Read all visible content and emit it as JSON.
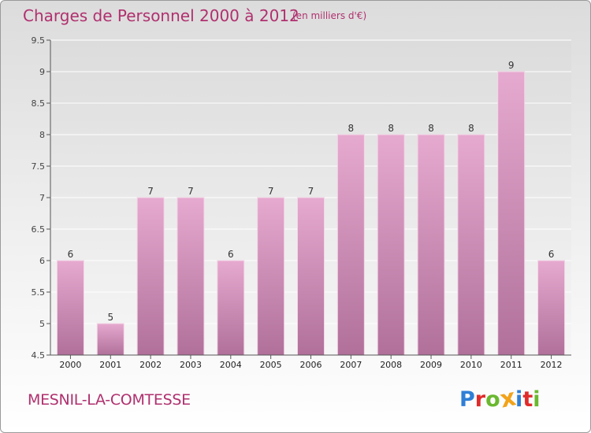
{
  "header": {
    "title": "Charges de Personnel 2000 à 2012",
    "subtitle": "(en milliers d'€)"
  },
  "footer": {
    "commune": "MESNIL-LA-COMTESSE",
    "logo_text": "Proxiti"
  },
  "colors": {
    "bar_light": "#e6a9cf",
    "bar_dark": "#b0709a",
    "accent": "#b0306e",
    "logo": [
      "#2f7fd6",
      "#e02b2b",
      "#6ab82f",
      "#f2a31a",
      "#2f7fd6",
      "#e02b2b",
      "#6ab82f"
    ]
  },
  "chart_data": {
    "type": "bar",
    "title": "Charges de Personnel 2000 à 2012",
    "subtitle": "(en milliers d'€)",
    "categories": [
      "2000",
      "2001",
      "2002",
      "2003",
      "2004",
      "2005",
      "2006",
      "2007",
      "2008",
      "2009",
      "2010",
      "2011",
      "2012"
    ],
    "values": [
      6,
      5,
      7,
      7,
      6,
      7,
      7,
      8,
      8,
      8,
      8,
      9,
      6
    ],
    "data_labels": [
      "6",
      "5",
      "7",
      "7",
      "6",
      "7",
      "7",
      "8",
      "8",
      "8",
      "8",
      "9",
      "6"
    ],
    "ylim": [
      4.5,
      9.5
    ],
    "yticks": [
      4.5,
      5,
      5.5,
      6,
      6.5,
      7,
      7.5,
      8,
      8.5,
      9,
      9.5
    ],
    "ytick_labels": [
      "4.5",
      "5",
      "5.5",
      "6",
      "6.5",
      "7",
      "7.5",
      "8",
      "8.5",
      "9",
      "9.5"
    ],
    "grid": true,
    "xlabel": "",
    "ylabel": ""
  }
}
